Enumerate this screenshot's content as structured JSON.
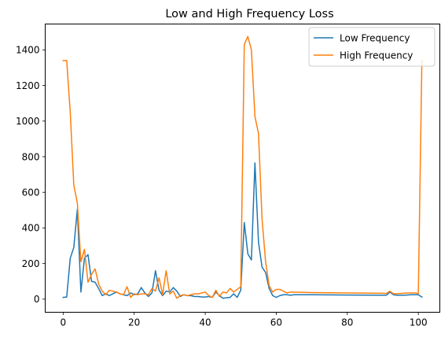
{
  "chart_data": {
    "type": "line",
    "title": "Low and High Frequency Loss",
    "xlabel": "",
    "ylabel": "",
    "xlim": [
      -5.05,
      106.05
    ],
    "ylim": [
      -73.5,
      1545
    ],
    "xticks": [
      0,
      20,
      40,
      60,
      80,
      100
    ],
    "yticks": [
      0,
      200,
      400,
      600,
      800,
      1000,
      1200,
      1400
    ],
    "grid": false,
    "legend_position": "top-right",
    "series": [
      {
        "name": "Low Frequency",
        "color": "#1f77b4",
        "points": [
          [
            0,
            10
          ],
          [
            1,
            12
          ],
          [
            2,
            230
          ],
          [
            3,
            290
          ],
          [
            4,
            505
          ],
          [
            5,
            40
          ],
          [
            6,
            230
          ],
          [
            7,
            250
          ],
          [
            8,
            100
          ],
          [
            9,
            95
          ],
          [
            10,
            60
          ],
          [
            11,
            20
          ],
          [
            12,
            30
          ],
          [
            13,
            20
          ],
          [
            14,
            30
          ],
          [
            15,
            40
          ],
          [
            16,
            30
          ],
          [
            17,
            25
          ],
          [
            18,
            20
          ],
          [
            19,
            35
          ],
          [
            20,
            25
          ],
          [
            21,
            30
          ],
          [
            22,
            65
          ],
          [
            23,
            35
          ],
          [
            24,
            15
          ],
          [
            25,
            35
          ],
          [
            26,
            160
          ],
          [
            27,
            50
          ],
          [
            28,
            20
          ],
          [
            29,
            45
          ],
          [
            30,
            40
          ],
          [
            31,
            65
          ],
          [
            32,
            45
          ],
          [
            33,
            15
          ],
          [
            34,
            25
          ],
          [
            35,
            20
          ],
          [
            36,
            20
          ],
          [
            37,
            15
          ],
          [
            38,
            15
          ],
          [
            39,
            12
          ],
          [
            40,
            12
          ],
          [
            41,
            15
          ],
          [
            42,
            10
          ],
          [
            43,
            40
          ],
          [
            44,
            20
          ],
          [
            45,
            5
          ],
          [
            46,
            8
          ],
          [
            47,
            10
          ],
          [
            48,
            30
          ],
          [
            49,
            10
          ],
          [
            50,
            50
          ],
          [
            51,
            430
          ],
          [
            52,
            255
          ],
          [
            53,
            220
          ],
          [
            54,
            765
          ],
          [
            55,
            320
          ],
          [
            56,
            180
          ],
          [
            57,
            150
          ],
          [
            58,
            60
          ],
          [
            59,
            20
          ],
          [
            60,
            10
          ],
          [
            61,
            20
          ],
          [
            62,
            25
          ],
          [
            63,
            25
          ],
          [
            64,
            22
          ],
          [
            65,
            25
          ],
          [
            70,
            25
          ],
          [
            80,
            23
          ],
          [
            90,
            22
          ],
          [
            91,
            22
          ],
          [
            92,
            40
          ],
          [
            93,
            25
          ],
          [
            94,
            22
          ],
          [
            96,
            22
          ],
          [
            98,
            25
          ],
          [
            100,
            25
          ],
          [
            101,
            12
          ]
        ]
      },
      {
        "name": "High Frequency",
        "color": "#ff7f0e",
        "points": [
          [
            0,
            1340
          ],
          [
            1,
            1340
          ],
          [
            2,
            1050
          ],
          [
            3,
            640
          ],
          [
            4,
            540
          ],
          [
            5,
            210
          ],
          [
            6,
            280
          ],
          [
            7,
            95
          ],
          [
            8,
            140
          ],
          [
            9,
            170
          ],
          [
            10,
            85
          ],
          [
            11,
            45
          ],
          [
            12,
            25
          ],
          [
            13,
            50
          ],
          [
            14,
            45
          ],
          [
            15,
            40
          ],
          [
            16,
            30
          ],
          [
            17,
            25
          ],
          [
            18,
            70
          ],
          [
            19,
            10
          ],
          [
            20,
            30
          ],
          [
            21,
            25
          ],
          [
            22,
            30
          ],
          [
            23,
            30
          ],
          [
            24,
            25
          ],
          [
            25,
            60
          ],
          [
            26,
            45
          ],
          [
            27,
            120
          ],
          [
            28,
            25
          ],
          [
            29,
            160
          ],
          [
            30,
            30
          ],
          [
            31,
            45
          ],
          [
            32,
            5
          ],
          [
            33,
            20
          ],
          [
            34,
            25
          ],
          [
            35,
            20
          ],
          [
            36,
            25
          ],
          [
            37,
            30
          ],
          [
            38,
            30
          ],
          [
            39,
            35
          ],
          [
            40,
            40
          ],
          [
            41,
            20
          ],
          [
            42,
            10
          ],
          [
            43,
            50
          ],
          [
            44,
            15
          ],
          [
            45,
            40
          ],
          [
            46,
            35
          ],
          [
            47,
            60
          ],
          [
            48,
            40
          ],
          [
            49,
            55
          ],
          [
            50,
            70
          ],
          [
            51,
            1430
          ],
          [
            52,
            1475
          ],
          [
            53,
            1400
          ],
          [
            54,
            1025
          ],
          [
            55,
            930
          ],
          [
            56,
            450
          ],
          [
            57,
            210
          ],
          [
            58,
            75
          ],
          [
            59,
            40
          ],
          [
            60,
            55
          ],
          [
            61,
            55
          ],
          [
            62,
            45
          ],
          [
            63,
            35
          ],
          [
            64,
            40
          ],
          [
            70,
            37
          ],
          [
            80,
            35
          ],
          [
            90,
            33
          ],
          [
            91,
            32
          ],
          [
            92,
            45
          ],
          [
            93,
            30
          ],
          [
            95,
            32
          ],
          [
            97,
            35
          ],
          [
            99,
            35
          ],
          [
            100,
            32
          ],
          [
            101,
            1340
          ]
        ]
      }
    ]
  }
}
